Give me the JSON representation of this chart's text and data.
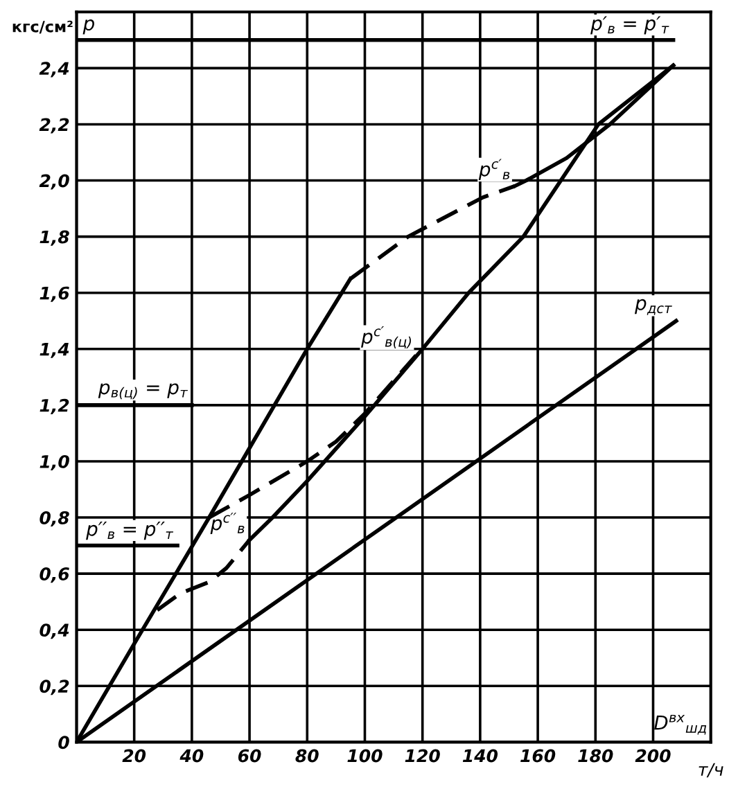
{
  "chart_data": {
    "type": "line",
    "xlabel": "т/ч",
    "ylabel": "кгс/см²",
    "xlim": [
      0,
      220
    ],
    "ylim": [
      0,
      2.6
    ],
    "xticks": [
      {
        "value": 0,
        "label": null
      },
      20,
      40,
      60,
      80,
      100,
      120,
      140,
      160,
      180,
      200
    ],
    "yticks": [
      0,
      {
        "value": 0.2,
        "label": "0,2"
      },
      {
        "value": 0.4,
        "label": "0,4"
      },
      {
        "value": 0.6,
        "label": "0,6"
      },
      {
        "value": 0.8,
        "label": "0,8"
      },
      {
        "value": 1.0,
        "label": "1,0"
      },
      {
        "value": 1.2,
        "label": "1,2"
      },
      {
        "value": 1.4,
        "label": "1,4"
      },
      {
        "value": 1.6,
        "label": "1,6"
      },
      {
        "value": 1.8,
        "label": "1,8"
      },
      {
        "value": 2.0,
        "label": "2,0"
      },
      {
        "value": 2.2,
        "label": "2,2"
      },
      {
        "value": 2.4,
        "label": "2,4"
      }
    ],
    "grid": true,
    "legend": false,
    "marker": "none",
    "series": [
      {
        "color": "#000000",
        "line_style": "solid",
        "x": [
          0,
          20,
          46,
          80,
          95
        ],
        "values": [
          0,
          0.35,
          0.8,
          1.4,
          1.65
        ]
      },
      {
        "name": "p$^{c′}$$_{в}$",
        "color": "#000000",
        "line_style": "dashed",
        "x": [
          95,
          115,
          141,
          152
        ],
        "values": [
          1.65,
          1.8,
          1.94,
          1.98
        ]
      },
      {
        "color": "#000000",
        "line_style": "solid",
        "x": [
          152,
          156,
          170,
          185,
          207
        ],
        "values": [
          1.98,
          2.0,
          2.08,
          2.2,
          2.41
        ]
      },
      {
        "color": "#000000",
        "line_style": "solid",
        "x": [
          60,
          68,
          80,
          100,
          120,
          136,
          155,
          181,
          207
        ],
        "values": [
          0.72,
          0.8,
          0.93,
          1.16,
          1.4,
          1.6,
          1.8,
          2.2,
          2.41
        ]
      },
      {
        "name": "p$^{c′}$$_{в(ц)}$",
        "color": "#000000",
        "line_style": "dashed",
        "x": [
          46,
          60,
          80,
          90,
          100,
          118
        ],
        "values": [
          0.8,
          0.88,
          1.0,
          1.07,
          1.17,
          1.38
        ]
      },
      {
        "name": "p$^{c′′}$$_{в}$",
        "color": "#000000",
        "line_style": "dashed",
        "x": [
          28,
          36,
          46,
          52,
          60
        ],
        "values": [
          0.47,
          0.53,
          0.57,
          0.62,
          0.72
        ]
      },
      {
        "name": "p$_{дст}$",
        "color": "#000000",
        "line_style": "solid",
        "x": [
          0,
          208
        ],
        "values": [
          0,
          1.5
        ]
      },
      {
        "name": "p′$_{в}$ = p′$_{т}$",
        "color": "#000000",
        "line_style": "solid",
        "x": [
          0,
          207
        ],
        "values": [
          2.5,
          2.5
        ]
      },
      {
        "name": "p$_{в(ц)}$ = p$_{т}$",
        "color": "#000000",
        "line_style": "solid",
        "x": [
          0,
          40
        ],
        "values": [
          1.2,
          1.2
        ]
      },
      {
        "name": "p′′$_{в}$ = p′′$_{т}$",
        "color": "#000000",
        "line_style": "solid",
        "x": [
          0,
          35
        ],
        "values": [
          0.7,
          0.7
        ]
      }
    ],
    "annotations": [
      "p",
      "D$^{вх}$$_{шд}$"
    ]
  }
}
